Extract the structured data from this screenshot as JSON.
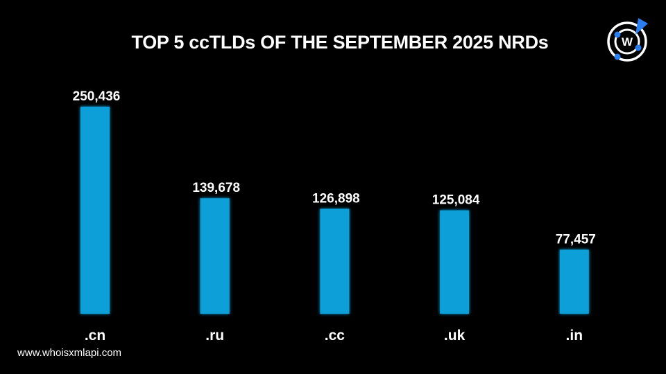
{
  "chart_data": {
    "type": "bar",
    "title": "TOP 5 ccTLDs OF THE SEPTEMBER 2025 NRDs",
    "categories": [
      ".cn",
      ".ru",
      ".cc",
      ".uk",
      ".in"
    ],
    "values": [
      250436,
      139678,
      126898,
      125084,
      77457
    ],
    "value_labels": [
      "250,436",
      "139,678",
      "126,898",
      "125,084",
      "77,457"
    ],
    "xlabel": "",
    "ylabel": "",
    "ylim": [
      0,
      250436
    ],
    "grid": false,
    "bar_color": "#0e9fd8"
  },
  "footer": {
    "website": "www.whoisxmlapi.com"
  },
  "logo": {
    "letter": "W",
    "accent_color": "#2a7ef0"
  }
}
